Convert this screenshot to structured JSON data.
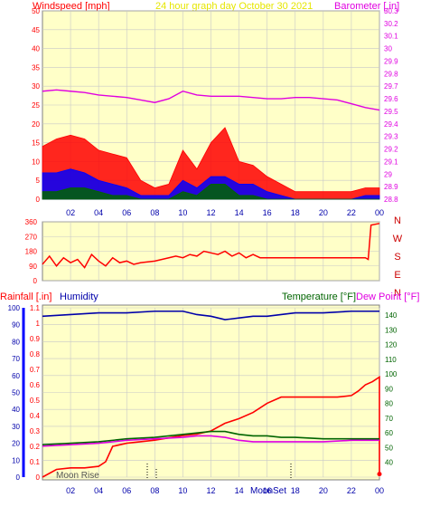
{
  "colors": {
    "background": "#ffffff",
    "plot_bg": "#ffffc8",
    "frame": "#7f7f7f",
    "grid": "#c8c8c8",
    "red": "#ff0000",
    "dark_red": "#cc0000",
    "blue": "#0000ff",
    "navy": "#0000aa",
    "green": "#006400",
    "magenta": "#e000e0",
    "title_yellow": "#e6e600"
  },
  "header": {
    "windspeed_label": "Windspeed [mph]",
    "title": "24 hour graph day   October 30 2021",
    "barometer_label": "Barometer [.in]"
  },
  "bottom_header": {
    "rainfall_label": "Rainfall [.in]",
    "humidity_label": "Humidity",
    "temperature_label": "Temperature [°F]",
    "dewpoint_label": "Dew Point [°F]"
  },
  "compass": [
    "N",
    "W",
    "S",
    "E",
    "N"
  ],
  "footer": {
    "moon_rise": "Moon Rise",
    "moon_set": "MoonSet"
  },
  "x_ticks": [
    "02",
    "04",
    "06",
    "08",
    "10",
    "12",
    "14",
    "16",
    "18",
    "20",
    "22",
    "00"
  ],
  "chart_data": [
    {
      "type": "area",
      "panel": "wind_and_barometer",
      "x_unit": "hour",
      "xlim": [
        0,
        24
      ],
      "left_axis": {
        "label": "Windspeed [mph]",
        "ylim": [
          0,
          50
        ],
        "ticks": [
          0,
          5,
          10,
          15,
          20,
          25,
          30,
          35,
          40,
          45,
          50
        ]
      },
      "right_axis": {
        "label": "Barometer [.in]",
        "ylim": [
          28.8,
          30.3
        ],
        "ticks": [
          "28.8",
          "28.9",
          "29",
          "29.1",
          "29.2",
          "29.3",
          "29.4",
          "29.5",
          "29.6",
          "29.7",
          "29.8",
          "29.9",
          "30",
          "30.1",
          "30.2",
          "30.3"
        ]
      },
      "series": [
        {
          "name": "Barometer",
          "color": "#e000e0",
          "axis": "right",
          "x": [
            0,
            1,
            2,
            3,
            4,
            5,
            6,
            7,
            8,
            9,
            10,
            11,
            12,
            13,
            14,
            15,
            16,
            17,
            18,
            19,
            20,
            21,
            22,
            23,
            24
          ],
          "y": [
            29.66,
            29.67,
            29.66,
            29.65,
            29.63,
            29.62,
            29.61,
            29.59,
            29.57,
            29.6,
            29.66,
            29.63,
            29.62,
            29.62,
            29.62,
            29.61,
            29.6,
            29.6,
            29.61,
            29.61,
            29.6,
            29.59,
            29.56,
            29.53,
            29.51
          ]
        },
        {
          "name": "Wind gust",
          "color": "#ff0000",
          "axis": "left",
          "x": [
            0,
            1,
            2,
            3,
            4,
            5,
            6,
            7,
            8,
            9,
            10,
            11,
            12,
            13,
            14,
            15,
            16,
            17,
            18,
            19,
            20,
            21,
            22,
            23,
            24
          ],
          "y": [
            14,
            16,
            17,
            16,
            13,
            12,
            11,
            5,
            3,
            4,
            13,
            8,
            15,
            19,
            10,
            9,
            6,
            4,
            2,
            2,
            2,
            2,
            2,
            3,
            3
          ]
        },
        {
          "name": "Wind average",
          "color": "#0000ff",
          "axis": "left",
          "x": [
            0,
            1,
            2,
            3,
            4,
            5,
            6,
            7,
            8,
            9,
            10,
            11,
            12,
            13,
            14,
            15,
            16,
            17,
            18,
            19,
            20,
            21,
            22,
            23,
            24
          ],
          "y": [
            7,
            7,
            8,
            7,
            5,
            4,
            3,
            1,
            1,
            1,
            5,
            3,
            6,
            6,
            4,
            4,
            2,
            1,
            0,
            0,
            0,
            0,
            0,
            1,
            1
          ]
        },
        {
          "name": "Wind speed",
          "color": "#006400",
          "axis": "left",
          "x": [
            0,
            1,
            2,
            3,
            4,
            5,
            6,
            7,
            8,
            9,
            10,
            11,
            12,
            13,
            14,
            15,
            16,
            17,
            18,
            19,
            20,
            21,
            22,
            23,
            24
          ],
          "y": [
            2,
            2,
            3,
            3,
            2,
            1,
            1,
            0,
            0,
            0,
            2,
            1,
            4,
            4,
            1,
            1,
            0,
            0,
            0,
            0,
            0,
            0,
            0,
            0,
            0
          ]
        }
      ]
    },
    {
      "type": "line",
      "panel": "wind_direction",
      "x_unit": "hour",
      "xlim": [
        0,
        24
      ],
      "left_axis": {
        "ylim": [
          0,
          360
        ],
        "ticks": [
          0,
          90,
          180,
          270,
          360
        ]
      },
      "series": [
        {
          "name": "Wind direction",
          "color": "#ff0000",
          "x": [
            0,
            0.5,
            1,
            1.5,
            2,
            2.5,
            3,
            3.5,
            4,
            4.5,
            5,
            5.5,
            6,
            6.5,
            7,
            8,
            9,
            9.5,
            10,
            10.5,
            11,
            11.5,
            12,
            12.5,
            13,
            13.5,
            14,
            14.5,
            15,
            15.5,
            16,
            17,
            18,
            19,
            20,
            21,
            22,
            23,
            23.2,
            23.4,
            24
          ],
          "y": [
            100,
            150,
            90,
            140,
            110,
            130,
            80,
            160,
            120,
            90,
            140,
            110,
            120,
            100,
            110,
            120,
            140,
            150,
            140,
            160,
            150,
            180,
            170,
            160,
            180,
            150,
            170,
            140,
            160,
            140,
            140,
            140,
            140,
            140,
            140,
            140,
            140,
            140,
            130,
            340,
            350
          ]
        }
      ]
    },
    {
      "type": "line",
      "panel": "rain_humidity_temperature",
      "x_unit": "hour",
      "xlim": [
        0,
        24
      ],
      "left_axis_humidity": {
        "label": "Humidity",
        "ylim": [
          0,
          100
        ],
        "ticks": [
          0,
          10,
          20,
          30,
          40,
          50,
          60,
          70,
          80,
          90,
          100
        ]
      },
      "left_axis_rain": {
        "label": "Rainfall [.in]",
        "ylim": [
          0,
          1.1
        ],
        "ticks": [
          "0",
          "0.1",
          "0.2",
          "0.3",
          "0.4",
          "0.5",
          "0.6",
          "0.7",
          "0.8",
          "0.9",
          "1",
          "1.1"
        ]
      },
      "right_axis": {
        "label": "Temperature [°F]",
        "ylim": [
          30,
          145
        ],
        "ticks": [
          40,
          50,
          60,
          70,
          80,
          90,
          100,
          110,
          120,
          130,
          140
        ]
      },
      "series": [
        {
          "name": "Humidity",
          "color": "#0000aa",
          "axis": "humidity",
          "x": [
            0,
            2,
            4,
            6,
            8,
            10,
            11,
            12,
            13,
            14,
            15,
            16,
            17,
            18,
            20,
            22,
            24
          ],
          "y": [
            95,
            96,
            97,
            97,
            98,
            98,
            96,
            95,
            93,
            94,
            95,
            95,
            96,
            97,
            97,
            98,
            98
          ]
        },
        {
          "name": "Rainfall",
          "color": "#ff0000",
          "axis": "rain",
          "x": [
            0,
            1,
            2,
            3,
            4,
            4.5,
            5,
            6,
            8,
            10,
            11,
            12,
            13,
            14,
            15,
            16,
            17,
            18,
            19,
            20,
            21,
            22,
            22.5,
            23,
            23.5,
            24,
            24
          ],
          "y": [
            0,
            0.05,
            0.06,
            0.06,
            0.07,
            0.1,
            0.2,
            0.22,
            0.24,
            0.27,
            0.28,
            0.3,
            0.35,
            0.38,
            0.42,
            0.48,
            0.52,
            0.52,
            0.52,
            0.52,
            0.52,
            0.53,
            0.56,
            0.6,
            0.62,
            0.65,
            0.02
          ]
        },
        {
          "name": "Temperature",
          "color": "#006400",
          "axis": "temperature",
          "x": [
            0,
            2,
            4,
            6,
            8,
            10,
            11,
            12,
            13,
            14,
            15,
            16,
            17,
            18,
            20,
            22,
            24
          ],
          "y": [
            52,
            53,
            54,
            56,
            57,
            59,
            60,
            61,
            61,
            59,
            58,
            58,
            57,
            57,
            56,
            56,
            56
          ]
        },
        {
          "name": "Dew Point",
          "color": "#e000e0",
          "axis": "temperature",
          "x": [
            0,
            2,
            4,
            6,
            8,
            10,
            11,
            12,
            13,
            14,
            15,
            16,
            17,
            18,
            20,
            22,
            24
          ],
          "y": [
            51,
            52,
            53,
            55,
            56,
            57,
            58,
            58,
            57,
            55,
            54,
            54,
            54,
            54,
            54,
            55,
            55
          ]
        }
      ]
    }
  ]
}
